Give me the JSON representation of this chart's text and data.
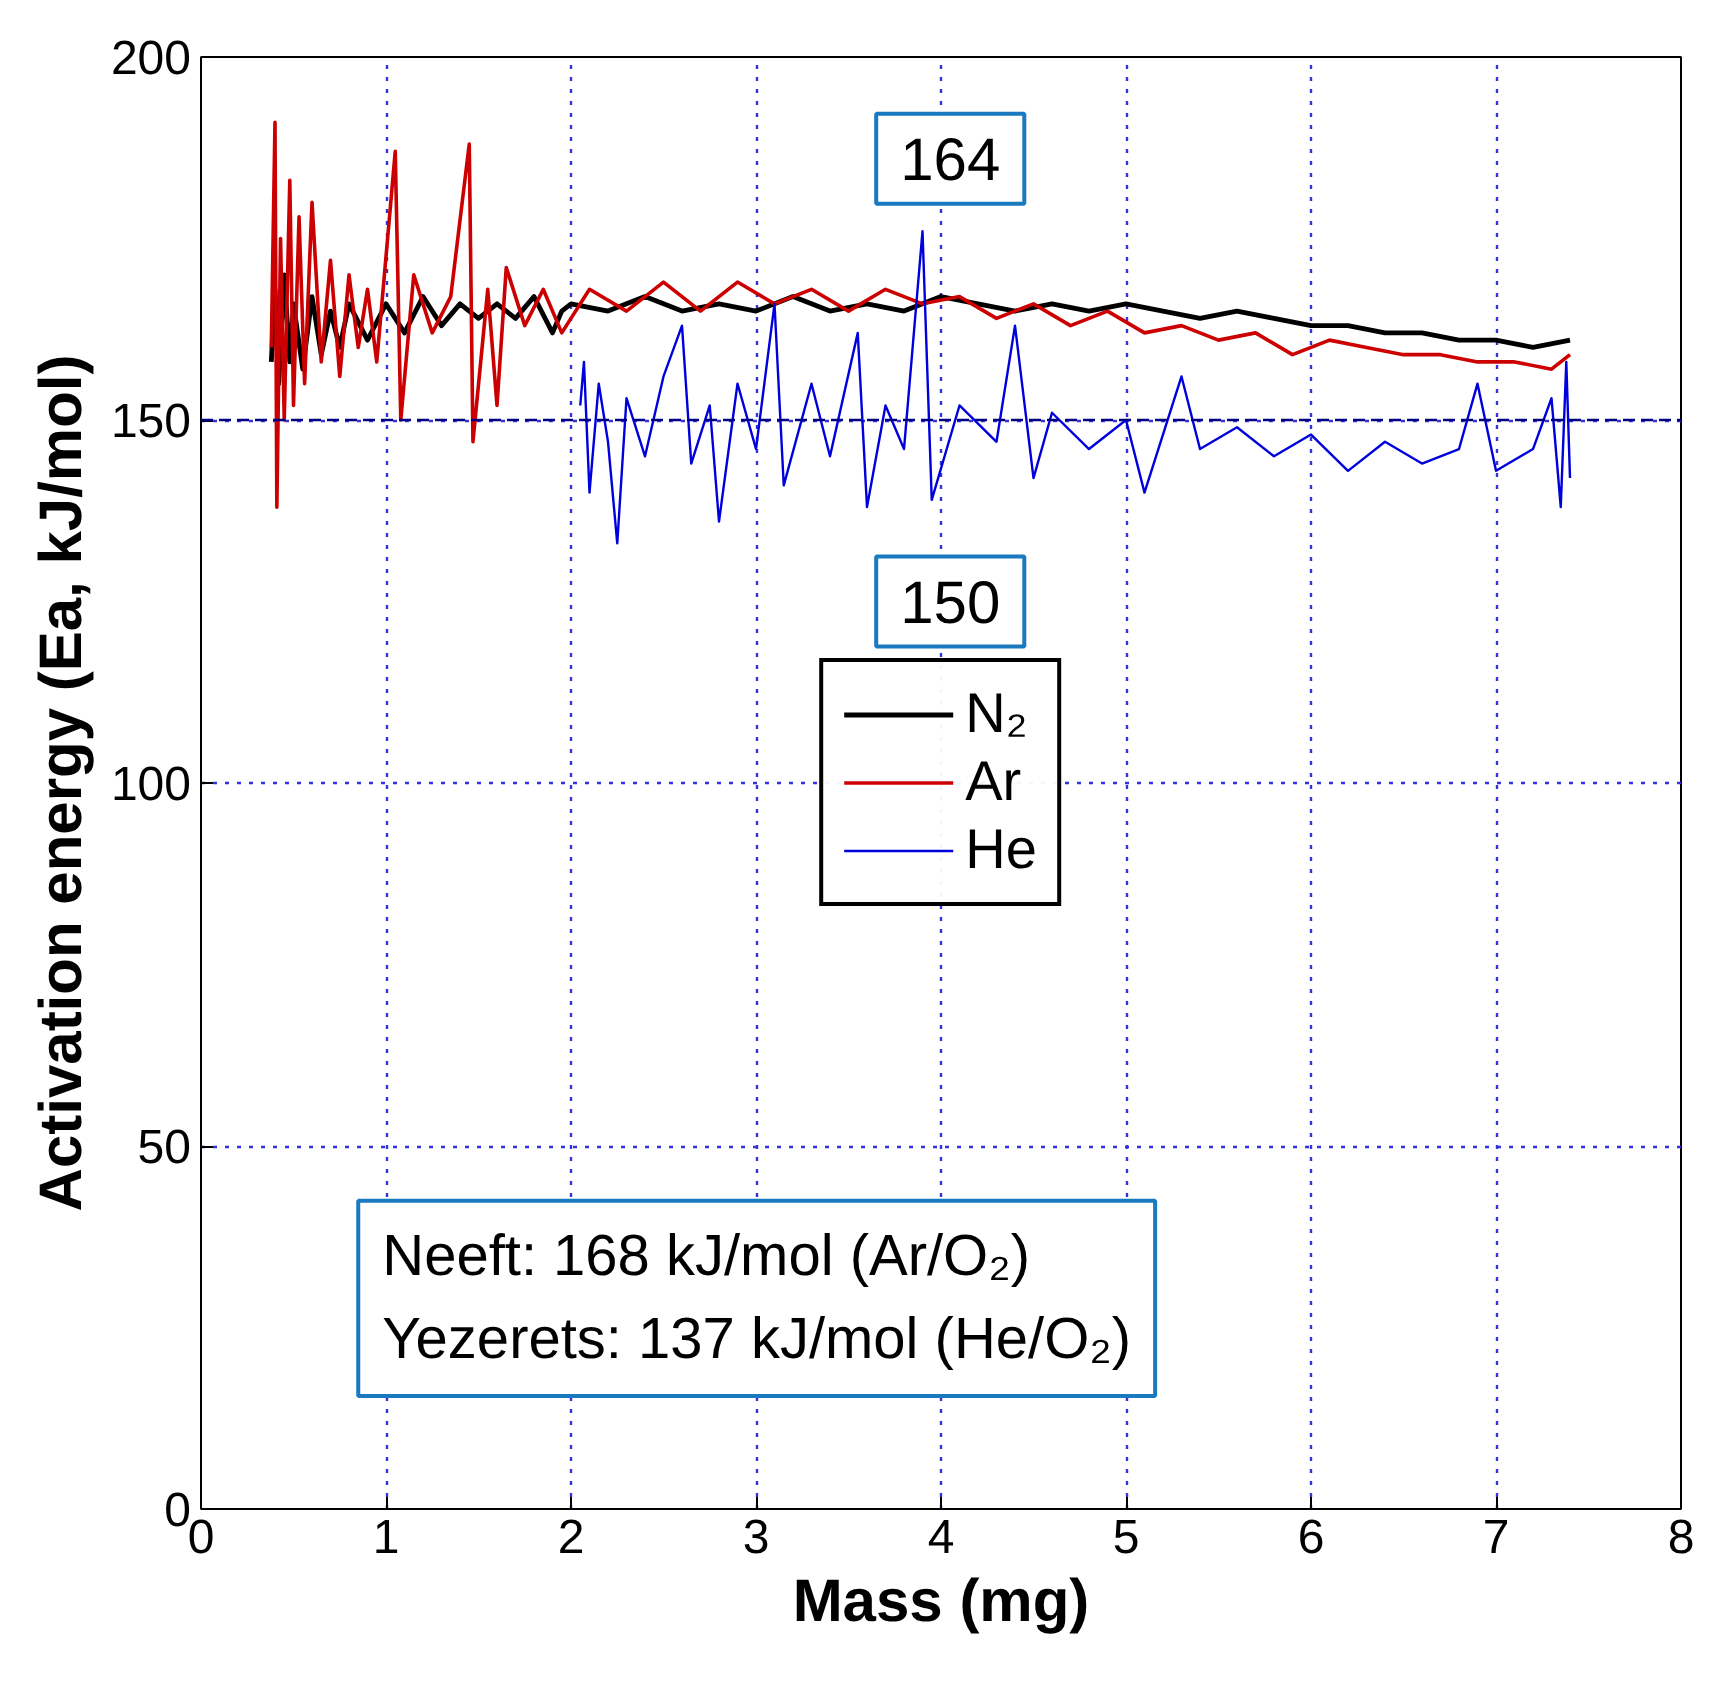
{
  "chart_data": {
    "type": "line",
    "xlabel": "Mass (mg)",
    "ylabel": "Activation energy (Ea, kJ/mol)",
    "xlim": [
      0,
      8
    ],
    "ylim": [
      0,
      200
    ],
    "xticks": [
      0,
      1,
      2,
      3,
      4,
      5,
      6,
      7,
      8
    ],
    "yticks": [
      0,
      50,
      100,
      150,
      200
    ],
    "grid": true,
    "legend": "center",
    "line_style": "solid",
    "marker": "none",
    "ref_lines": [
      {
        "axis": "y",
        "value": 150,
        "label": null,
        "color": "#000080",
        "line_style": "dashed"
      }
    ],
    "annotations": [
      "164",
      "150",
      "Neeft: 168 kJ/mol (Ar/O₂)\nYezerets: 137 kJ/mol (He/O₂)"
    ],
    "series": [
      {
        "name": "N₂",
        "color": "#000000",
        "x": [
          0.38,
          0.4,
          0.42,
          0.45,
          0.48,
          0.5,
          0.55,
          0.6,
          0.65,
          0.7,
          0.75,
          0.8,
          0.9,
          1.0,
          1.1,
          1.2,
          1.3,
          1.4,
          1.5,
          1.6,
          1.7,
          1.8,
          1.9,
          1.95,
          2.0,
          2.2,
          2.4,
          2.6,
          2.8,
          3.0,
          3.2,
          3.4,
          3.6,
          3.8,
          4.0,
          4.2,
          4.4,
          4.6,
          4.8,
          5.0,
          5.2,
          5.4,
          5.6,
          5.8,
          6.0,
          6.2,
          6.4,
          6.6,
          6.8,
          7.0,
          7.2,
          7.4
        ],
        "values": [
          158,
          168,
          155,
          170,
          158,
          166,
          157,
          167,
          159,
          165,
          160,
          166,
          161,
          166,
          162,
          167,
          163,
          166,
          164,
          166,
          164,
          167,
          162,
          165,
          166,
          165,
          167,
          165,
          166,
          165,
          167,
          165,
          166,
          165,
          167,
          166,
          165,
          166,
          165,
          166,
          165,
          164,
          165,
          164,
          163,
          163,
          162,
          162,
          161,
          161,
          160,
          161
        ]
      },
      {
        "name": "Ar",
        "color": "#cc0000",
        "x": [
          0.38,
          0.4,
          0.41,
          0.43,
          0.45,
          0.48,
          0.5,
          0.53,
          0.56,
          0.6,
          0.65,
          0.7,
          0.75,
          0.8,
          0.85,
          0.9,
          0.95,
          1.05,
          1.08,
          1.15,
          1.25,
          1.35,
          1.45,
          1.47,
          1.55,
          1.6,
          1.65,
          1.75,
          1.85,
          1.95,
          2.1,
          2.3,
          2.5,
          2.7,
          2.9,
          3.1,
          3.3,
          3.5,
          3.7,
          3.9,
          4.1,
          4.3,
          4.5,
          4.7,
          4.9,
          5.1,
          5.3,
          5.5,
          5.7,
          5.9,
          6.1,
          6.3,
          6.5,
          6.7,
          6.9,
          7.1,
          7.3,
          7.4
        ],
        "values": [
          160,
          191,
          138,
          175,
          150,
          183,
          152,
          178,
          155,
          180,
          158,
          172,
          156,
          170,
          160,
          168,
          158,
          187,
          150,
          170,
          162,
          167,
          188,
          147,
          168,
          152,
          171,
          163,
          168,
          162,
          168,
          165,
          169,
          165,
          169,
          166,
          168,
          165,
          168,
          166,
          167,
          164,
          166,
          163,
          165,
          162,
          163,
          161,
          162,
          159,
          161,
          160,
          159,
          159,
          158,
          158,
          157,
          159
        ]
      },
      {
        "name": "He",
        "color": "#0000dd",
        "x": [
          2.05,
          2.07,
          2.1,
          2.15,
          2.2,
          2.25,
          2.3,
          2.4,
          2.5,
          2.6,
          2.65,
          2.75,
          2.8,
          2.9,
          3.0,
          3.1,
          3.15,
          3.3,
          3.4,
          3.55,
          3.6,
          3.7,
          3.8,
          3.9,
          3.95,
          4.1,
          4.3,
          4.4,
          4.5,
          4.6,
          4.8,
          5.0,
          5.1,
          5.3,
          5.4,
          5.6,
          5.8,
          6.0,
          6.2,
          6.4,
          6.6,
          6.8,
          6.9,
          7.0,
          7.2,
          7.3,
          7.35,
          7.38,
          7.4
        ],
        "values": [
          152,
          158,
          140,
          155,
          147,
          133,
          153,
          145,
          156,
          163,
          144,
          152,
          136,
          155,
          146,
          166,
          141,
          155,
          145,
          162,
          138,
          152,
          146,
          176,
          139,
          152,
          147,
          163,
          142,
          151,
          146,
          150,
          140,
          156,
          146,
          149,
          145,
          148,
          143,
          147,
          144,
          146,
          155,
          143,
          146,
          153,
          138,
          158,
          142
        ]
      }
    ]
  }
}
